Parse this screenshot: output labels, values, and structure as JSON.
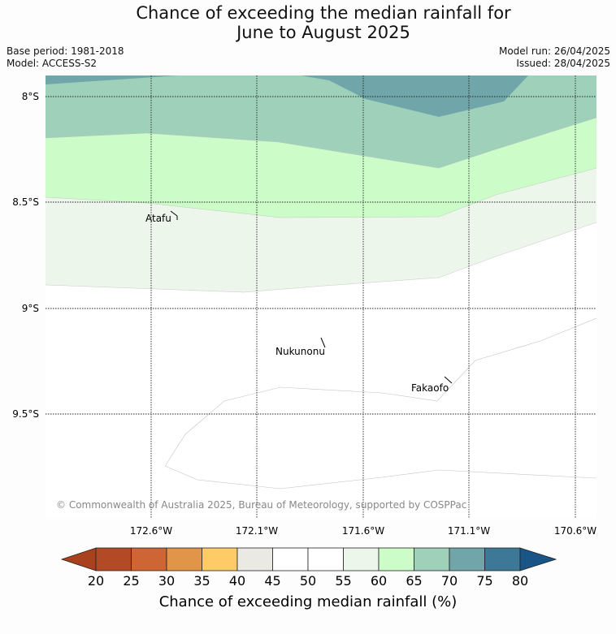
{
  "header": {
    "title_line1": "Chance of exceeding the median rainfall for",
    "title_line2": "June to August 2025",
    "base_period": "Base period: 1981-2018",
    "model": "Model: ACCESS-S2",
    "model_run": "Model run: 26/04/2025",
    "issued": "Issued: 28/04/2025"
  },
  "map": {
    "lat_labels": [
      "8°S",
      "8.5°S",
      "9°S",
      "9.5°S"
    ],
    "lon_labels": [
      "172.6°W",
      "172.1°W",
      "171.6°W",
      "171.1°W",
      "170.6°W"
    ],
    "places": [
      "Atafu",
      "Nukunonu",
      "Fakaofo"
    ],
    "copyright": "© Commonwealth of Australia 2025, Bureau of Meteorology, supported by COSPPac"
  },
  "colorbar": {
    "ticks": [
      "20",
      "25",
      "30",
      "35",
      "40",
      "45",
      "50",
      "55",
      "60",
      "65",
      "70",
      "75",
      "80"
    ],
    "colors": [
      "#a9401e",
      "#b24a26",
      "#cd6634",
      "#e29449",
      "#fecb66",
      "#ebe9e4",
      "#ffffff",
      "#ffffff",
      "#ecf6ea",
      "#ccfdc8",
      "#9fd1ba",
      "#70a6aa",
      "#3d7896",
      "#1a5587"
    ],
    "label": "Chance of exceeding median rainfall (%)"
  }
}
